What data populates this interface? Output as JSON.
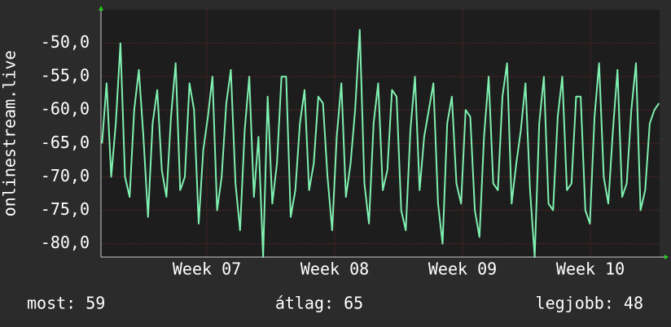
{
  "chart_data": {
    "type": "line",
    "y_label": "onlinestream.live",
    "color": "#7ff0b0",
    "grid": true,
    "ylim": [
      -82,
      -45
    ],
    "yticks": [
      {
        "value": -50,
        "label": "-50,0"
      },
      {
        "value": -55,
        "label": "-55,0"
      },
      {
        "value": -60,
        "label": "-60,0"
      },
      {
        "value": -65,
        "label": "-65,0"
      },
      {
        "value": -70,
        "label": "-70,0"
      },
      {
        "value": -75,
        "label": "-75,0"
      },
      {
        "value": -80,
        "label": "-80,0"
      }
    ],
    "xlim": [
      6.172,
      10.541
    ],
    "xticks": [
      {
        "value": 7,
        "label": "Week 07"
      },
      {
        "value": 8,
        "label": "Week 08"
      },
      {
        "value": 9,
        "label": "Week 09"
      },
      {
        "value": 10,
        "label": "Week 10"
      }
    ],
    "x": [
      6.18,
      6.216,
      6.252,
      6.288,
      6.324,
      6.36,
      6.396,
      6.432,
      6.468,
      6.504,
      6.54,
      6.576,
      6.612,
      6.648,
      6.684,
      6.72,
      6.756,
      6.792,
      6.828,
      6.864,
      6.9,
      6.936,
      6.972,
      7.008,
      7.044,
      7.08,
      7.116,
      7.152,
      7.188,
      7.224,
      7.26,
      7.296,
      7.332,
      7.368,
      7.404,
      7.44,
      7.476,
      7.512,
      7.548,
      7.584,
      7.62,
      7.656,
      7.692,
      7.728,
      7.764,
      7.8,
      7.836,
      7.872,
      7.908,
      7.944,
      7.98,
      8.016,
      8.052,
      8.088,
      8.124,
      8.16,
      8.196,
      8.232,
      8.268,
      8.304,
      8.34,
      8.376,
      8.412,
      8.448,
      8.484,
      8.52,
      8.556,
      8.592,
      8.628,
      8.664,
      8.7,
      8.736,
      8.772,
      8.808,
      8.844,
      8.88,
      8.916,
      8.952,
      8.988,
      9.024,
      9.06,
      9.096,
      9.132,
      9.168,
      9.204,
      9.24,
      9.276,
      9.312,
      9.348,
      9.384,
      9.42,
      9.456,
      9.492,
      9.528,
      9.564,
      9.6,
      9.636,
      9.672,
      9.708,
      9.744,
      9.78,
      9.816,
      9.852,
      9.888,
      9.924,
      9.96,
      9.996,
      10.032,
      10.068,
      10.104,
      10.14,
      10.176,
      10.212,
      10.248,
      10.284,
      10.32,
      10.356,
      10.392,
      10.428,
      10.464,
      10.5,
      10.536
    ],
    "values": [
      -65,
      -56,
      -70,
      -62,
      -50,
      -70,
      -73,
      -60,
      -54,
      -64,
      -76,
      -62,
      -57,
      -69,
      -73,
      -61,
      -53,
      -72,
      -70,
      -56,
      -60,
      -77,
      -66,
      -61,
      -55,
      -75,
      -70,
      -59,
      -54,
      -71,
      -78,
      -63,
      -55,
      -73,
      -64,
      -82,
      -58,
      -74,
      -68,
      -55,
      -55,
      -76,
      -72,
      -62,
      -57,
      -72,
      -68,
      -58,
      -59,
      -70,
      -78,
      -64,
      -56,
      -73,
      -68,
      -60,
      -48,
      -71,
      -77,
      -62,
      -56,
      -72,
      -69,
      -57,
      -58,
      -75,
      -78,
      -63,
      -55,
      -72,
      -64,
      -60,
      -56,
      -74,
      -80,
      -62,
      -58,
      -71,
      -74,
      -60,
      -61,
      -75,
      -79,
      -64,
      -55,
      -71,
      -72,
      -58,
      -53,
      -74,
      -68,
      -63,
      -56,
      -72,
      -82,
      -62,
      -55,
      -74,
      -75,
      -61,
      -55,
      -72,
      -71,
      -58,
      -58,
      -75,
      -77,
      -61,
      -53,
      -70,
      -74,
      -63,
      -54,
      -73,
      -71,
      -60,
      -53,
      -75,
      -72,
      -62,
      -60,
      -59
    ],
    "stats": [
      "most: 59",
      "átlag: 65",
      "legjobb: 48"
    ]
  }
}
